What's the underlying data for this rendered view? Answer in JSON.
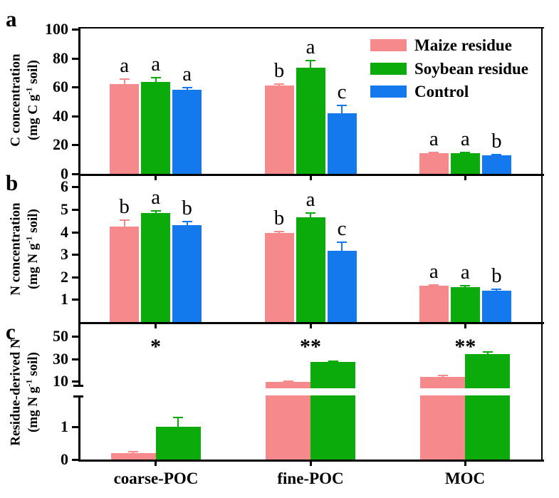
{
  "figure": {
    "panel_letters": [
      "a",
      "b",
      "c"
    ],
    "categories": [
      "coarse-POC",
      "fine-POC",
      "MOC"
    ],
    "legend": [
      {
        "label": "Maize residue",
        "color": "#F5898C"
      },
      {
        "label": "Soybean residue",
        "color": "#0BAB0B"
      },
      {
        "label": "Control",
        "color": "#1479EC"
      }
    ]
  },
  "chart_data": [
    {
      "type": "bar",
      "panel": "a",
      "ylabel": "C concentration",
      "unit": {
        "pre": "(mg C g",
        "sup": "-1",
        "post": " soil)"
      },
      "ylim": [
        0,
        100
      ],
      "yticks": [
        0,
        20,
        40,
        60,
        80,
        100
      ],
      "grid": false,
      "legend_position": "top-right",
      "categories": [
        "coarse-POC",
        "fine-POC",
        "MOC"
      ],
      "series": [
        {
          "name": "Maize residue",
          "values": [
            62,
            61,
            14.5
          ],
          "errors": [
            3.5,
            1,
            0.5
          ],
          "letters": [
            "a",
            "b",
            "a"
          ]
        },
        {
          "name": "Soybean residue",
          "values": [
            63.5,
            73.5,
            14.3
          ],
          "errors": [
            3,
            5,
            0.5
          ],
          "letters": [
            "a",
            "a",
            "a"
          ]
        },
        {
          "name": "Control",
          "values": [
            58,
            42,
            12.8
          ],
          "errors": [
            1.7,
            5.5,
            0.5
          ],
          "letters": [
            "a",
            "c",
            "b"
          ]
        }
      ]
    },
    {
      "type": "bar",
      "panel": "b",
      "ylabel": "N concentration",
      "unit": {
        "pre": "(mg N g",
        "sup": "-1",
        "post": " soil)"
      },
      "ylim": [
        0,
        6.5
      ],
      "yticks": [
        1,
        2,
        3,
        4,
        5,
        6
      ],
      "grid": false,
      "categories": [
        "coarse-POC",
        "fine-POC",
        "MOC"
      ],
      "series": [
        {
          "name": "Maize residue",
          "values": [
            4.25,
            3.95,
            1.6
          ],
          "errors": [
            0.28,
            0.08,
            0.06
          ],
          "letters": [
            "b",
            "b",
            "a"
          ]
        },
        {
          "name": "Soybean residue",
          "values": [
            4.85,
            4.65,
            1.55
          ],
          "errors": [
            0.1,
            0.2,
            0.05
          ],
          "letters": [
            "a",
            "a",
            "a"
          ]
        },
        {
          "name": "Control",
          "values": [
            4.3,
            3.15,
            1.4
          ],
          "errors": [
            0.15,
            0.4,
            0.05
          ],
          "letters": [
            "b",
            "c",
            "b"
          ]
        }
      ]
    },
    {
      "type": "bar",
      "panel": "c",
      "ylabel": "Residue-derived N",
      "unit": {
        "pre": "(mg N g",
        "sup": "-1",
        "post": " soil)"
      },
      "axis_break": {
        "lower_range": [
          0,
          2
        ],
        "upper_range": [
          4,
          60
        ],
        "lower_ticks": [
          0,
          1
        ],
        "upper_ticks": [
          10,
          30,
          50
        ]
      },
      "grid": false,
      "categories": [
        "coarse-POC",
        "fine-POC",
        "MOC"
      ],
      "series": [
        {
          "name": "Maize residue",
          "values": [
            0.2,
            9.5,
            14
          ],
          "errors": [
            0.05,
            0.5,
            1.5
          ]
        },
        {
          "name": "Soybean residue",
          "values": [
            1.0,
            27,
            34
          ],
          "errors": [
            0.28,
            0.8,
            2
          ]
        }
      ],
      "sig_markers": [
        "*",
        "**",
        "**"
      ]
    }
  ]
}
